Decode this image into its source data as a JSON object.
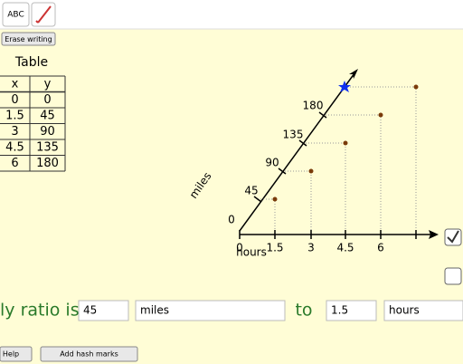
{
  "toolbar": {
    "text_tool": "ABC"
  },
  "erase_button": "Erase writing",
  "table": {
    "title": "Table",
    "header": [
      "x",
      "y"
    ],
    "rows": [
      [
        "0",
        "0"
      ],
      [
        "1.5",
        "45"
      ],
      [
        "3",
        "90"
      ],
      [
        "4.5",
        "135"
      ],
      [
        "6",
        "180"
      ]
    ]
  },
  "graph": {
    "x_ticks": [
      "0",
      "1.5",
      "3",
      "4.5",
      "6"
    ],
    "x_label": "hours",
    "line_ticks": [
      "0",
      "45",
      "90",
      "135",
      "180"
    ],
    "y_label": "miles"
  },
  "ratio": {
    "prefix": "ly ratio is",
    "value1": "45",
    "unit1": "miles",
    "joiner": "to",
    "value2": "1.5",
    "unit2": "hours"
  },
  "footer": {
    "help": "Help",
    "hash_button": "Add hash marks"
  }
}
